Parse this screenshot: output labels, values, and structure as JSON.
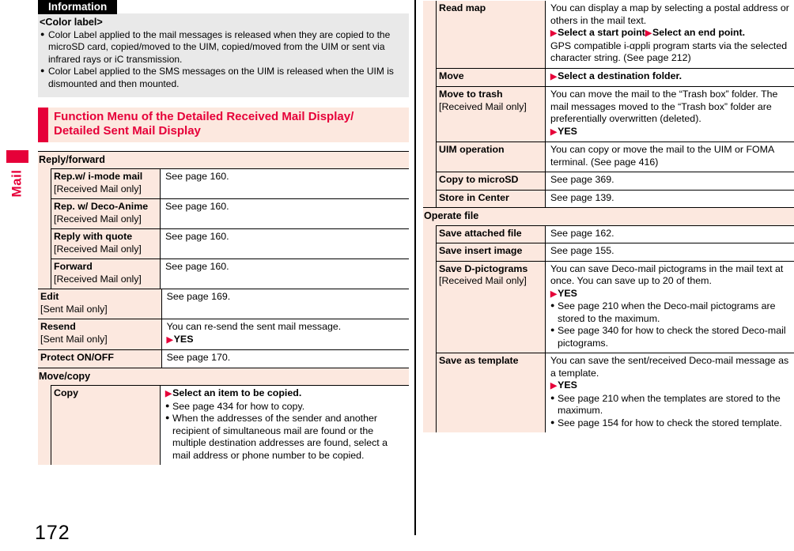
{
  "colors": {
    "accent_red": "#e60039",
    "panel_pink": "#fce8df",
    "info_gray": "#e9e9e9",
    "border_black": "#000000"
  },
  "page": {
    "number": "172",
    "side_tab_label": "Mail"
  },
  "info_box": {
    "title": "Information",
    "heading": "<Color label>",
    "bullets": [
      "Color Label applied to the mail messages is released when they are copied to the microSD card, copied/moved to the UIM, copied/moved from the UIM or sent via infrared rays or iC transmission.",
      "Color Label applied to the SMS messages on the UIM is released when the UIM is dismounted and then mounted."
    ]
  },
  "function_menu_header": {
    "line1": "Function Menu of the Detailed Received Mail Display/",
    "line2": "Detailed Sent Mail Display"
  },
  "left_table": {
    "sections": [
      {
        "header": "Reply/forward",
        "nested": true,
        "rows": [
          {
            "label": "Rep.w/ i-mode mail",
            "sublabel": "[Received Mail only]",
            "content": [
              {
                "kind": "plain",
                "text": "See page 160."
              }
            ]
          },
          {
            "label": "Rep. w/ Deco-Anime",
            "sublabel": "[Received Mail only]",
            "content": [
              {
                "kind": "plain",
                "text": "See page 160."
              }
            ]
          },
          {
            "label": "Reply with quote",
            "sublabel": "[Received Mail only]",
            "content": [
              {
                "kind": "plain",
                "text": "See page 160."
              }
            ]
          },
          {
            "label": "Forward",
            "sublabel": "[Received Mail only]",
            "content": [
              {
                "kind": "plain",
                "text": "See page 160."
              }
            ]
          }
        ]
      },
      {
        "header": null,
        "nested": false,
        "rows": [
          {
            "label": "Edit",
            "sublabel": "[Sent Mail only]",
            "content": [
              {
                "kind": "plain",
                "text": "See page 169."
              }
            ]
          },
          {
            "label": "Resend",
            "sublabel": "[Sent Mail only]",
            "content": [
              {
                "kind": "plain",
                "text": "You can re-send the sent mail message."
              },
              {
                "kind": "action",
                "items": [
                  "YES"
                ]
              }
            ]
          },
          {
            "label": "Protect ON/OFF",
            "sublabel": null,
            "content": [
              {
                "kind": "plain",
                "text": "See page 170."
              }
            ]
          }
        ]
      },
      {
        "header": "Move/copy",
        "nested": true,
        "rows": [
          {
            "label": "Copy",
            "sublabel": null,
            "content": [
              {
                "kind": "action",
                "items": [
                  "Select an item to be copied."
                ]
              },
              {
                "kind": "bullet",
                "text": "See page 434 for how to copy."
              },
              {
                "kind": "bullet",
                "text": "When the addresses of the sender and another recipient of simultaneous mail are found or the multiple destination addresses are found, select a mail address or phone number to be copied."
              }
            ]
          }
        ]
      }
    ]
  },
  "right_table": {
    "sections": [
      {
        "header": null,
        "nested": true,
        "rows": [
          {
            "label": "Read map",
            "sublabel": null,
            "content": [
              {
                "kind": "plain",
                "text": "You can display a map by selecting a postal address or others in the mail text."
              },
              {
                "kind": "action",
                "items": [
                  "Select a start point",
                  "Select an end point."
                ]
              },
              {
                "kind": "plain",
                "text": "GPS compatible i-αppli program starts via the selected character string. (See page 212)"
              }
            ]
          },
          {
            "label": "Move",
            "sublabel": null,
            "content": [
              {
                "kind": "action",
                "items": [
                  "Select a destination folder."
                ]
              }
            ]
          },
          {
            "label": "Move to trash",
            "sublabel": "[Received Mail only]",
            "content": [
              {
                "kind": "plain",
                "text": "You can move the mail to the “Trash box” folder. The mail messages moved to the “Trash box” folder are preferentially overwritten (deleted)."
              },
              {
                "kind": "action",
                "items": [
                  "YES"
                ]
              }
            ]
          },
          {
            "label": "UIM operation",
            "sublabel": null,
            "content": [
              {
                "kind": "plain",
                "text": "You can copy or move the mail to the UIM or FOMA terminal. (See page 416)"
              }
            ]
          },
          {
            "label": "Copy to microSD",
            "sublabel": null,
            "content": [
              {
                "kind": "plain",
                "text": "See page 369."
              }
            ]
          },
          {
            "label": "Store in Center",
            "sublabel": null,
            "content": [
              {
                "kind": "plain",
                "text": "See page 139."
              }
            ]
          }
        ]
      },
      {
        "header": "Operate file",
        "nested": true,
        "rows": [
          {
            "label": "Save attached file",
            "sublabel": null,
            "content": [
              {
                "kind": "plain",
                "text": "See page 162."
              }
            ]
          },
          {
            "label": "Save insert image",
            "sublabel": null,
            "content": [
              {
                "kind": "plain",
                "text": "See page 155."
              }
            ]
          },
          {
            "label": "Save D-pictograms",
            "sublabel": "[Received Mail only]",
            "content": [
              {
                "kind": "plain",
                "text": "You can save Deco-mail pictograms in the mail text at once. You can save up to 20 of them."
              },
              {
                "kind": "action",
                "items": [
                  "YES"
                ]
              },
              {
                "kind": "bullet",
                "text": "See page 210 when the Deco-mail pictograms are stored to the maximum."
              },
              {
                "kind": "bullet",
                "text": "See page 340 for how to check the stored Deco-mail pictograms."
              }
            ]
          },
          {
            "label": "Save as template",
            "sublabel": null,
            "content": [
              {
                "kind": "plain",
                "text": "You can save the sent/received Deco-mail message as a template."
              },
              {
                "kind": "action",
                "items": [
                  "YES"
                ]
              },
              {
                "kind": "bullet",
                "text": "See page 210 when the templates are stored to the maximum."
              },
              {
                "kind": "bullet",
                "text": "See page 154 for how to check the stored template."
              }
            ]
          }
        ]
      }
    ]
  }
}
